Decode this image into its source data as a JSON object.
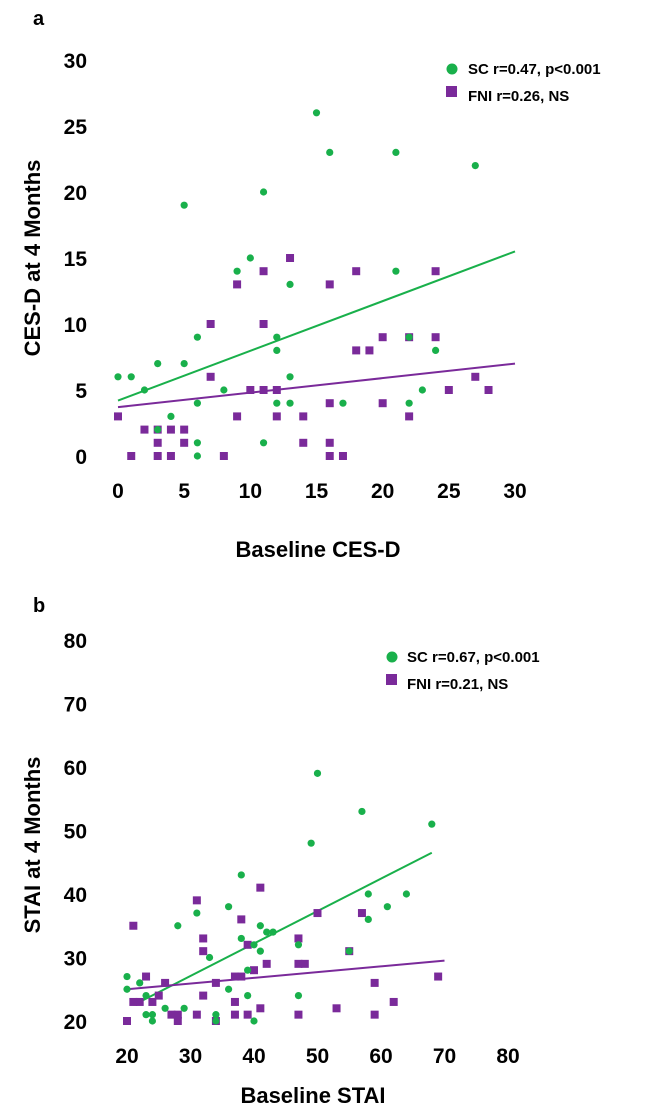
{
  "chart_data": [
    {
      "type": "scatter",
      "panel_label": "a",
      "xlabel": "Baseline  CES-D",
      "ylabel": "CES-D at 4 Months",
      "xlim": [
        0,
        30
      ],
      "ylim": [
        0,
        30
      ],
      "xticks": [
        0,
        5,
        10,
        15,
        20,
        25,
        30
      ],
      "yticks": [
        0,
        5,
        10,
        15,
        20,
        25,
        30
      ],
      "legend_position": "top-right",
      "series": [
        {
          "name": "SC r=0.47, p<0.001",
          "marker": "circle",
          "color": "#19b04b",
          "trend": [
            [
              0,
              4.2
            ],
            [
              30,
              15.5
            ]
          ],
          "points": [
            [
              0,
              6
            ],
            [
              1,
              6
            ],
            [
              2,
              5
            ],
            [
              3,
              7
            ],
            [
              3,
              2
            ],
            [
              4,
              3
            ],
            [
              5,
              7
            ],
            [
              5,
              19
            ],
            [
              6,
              9
            ],
            [
              6,
              4
            ],
            [
              6,
              1
            ],
            [
              6,
              0
            ],
            [
              8,
              5
            ],
            [
              9,
              14
            ],
            [
              10,
              15
            ],
            [
              11,
              20
            ],
            [
              11,
              1
            ],
            [
              12,
              9
            ],
            [
              12,
              8
            ],
            [
              12,
              4
            ],
            [
              13,
              13
            ],
            [
              13,
              6
            ],
            [
              13,
              4
            ],
            [
              15,
              26
            ],
            [
              16,
              23
            ],
            [
              17,
              4
            ],
            [
              21,
              23
            ],
            [
              21,
              14
            ],
            [
              22,
              9
            ],
            [
              22,
              4
            ],
            [
              23,
              5
            ],
            [
              24,
              8
            ],
            [
              27,
              22
            ]
          ]
        },
        {
          "name": "FNI r=0.26, NS",
          "marker": "square",
          "color": "#7a2a9a",
          "trend": [
            [
              0,
              3.7
            ],
            [
              30,
              7.0
            ]
          ],
          "points": [
            [
              0,
              3
            ],
            [
              1,
              0
            ],
            [
              2,
              2
            ],
            [
              3,
              2
            ],
            [
              3,
              1
            ],
            [
              3,
              0
            ],
            [
              4,
              2
            ],
            [
              4,
              0
            ],
            [
              5,
              2
            ],
            [
              5,
              1
            ],
            [
              7,
              10
            ],
            [
              7,
              6
            ],
            [
              8,
              0
            ],
            [
              9,
              13
            ],
            [
              9,
              3
            ],
            [
              10,
              5
            ],
            [
              11,
              14
            ],
            [
              11,
              10
            ],
            [
              11,
              5
            ],
            [
              12,
              5
            ],
            [
              12,
              3
            ],
            [
              13,
              15
            ],
            [
              14,
              3
            ],
            [
              14,
              1
            ],
            [
              16,
              13
            ],
            [
              16,
              4
            ],
            [
              16,
              1
            ],
            [
              16,
              0
            ],
            [
              17,
              0
            ],
            [
              18,
              14
            ],
            [
              18,
              8
            ],
            [
              19,
              8
            ],
            [
              20,
              9
            ],
            [
              20,
              4
            ],
            [
              22,
              9
            ],
            [
              22,
              3
            ],
            [
              24,
              14
            ],
            [
              24,
              9
            ],
            [
              25,
              5
            ],
            [
              27,
              6
            ],
            [
              28,
              5
            ]
          ]
        }
      ]
    },
    {
      "type": "scatter",
      "panel_label": "b",
      "xlabel": "Baseline STAI",
      "ylabel": "STAI at 4 Months",
      "xlim": [
        20,
        80
      ],
      "ylim": [
        20,
        80
      ],
      "xticks": [
        20,
        30,
        40,
        50,
        60,
        70,
        80
      ],
      "yticks": [
        20,
        30,
        40,
        50,
        60,
        70,
        80
      ],
      "legend_position": "top-right",
      "series": [
        {
          "name": "SC r=0.67, p<0.001",
          "marker": "circle",
          "color": "#19b04b",
          "trend": [
            [
              21,
              22.5
            ],
            [
              68,
              46.5
            ]
          ],
          "points": [
            [
              20,
              27
            ],
            [
              20,
              25
            ],
            [
              22,
              26
            ],
            [
              23,
              24
            ],
            [
              23,
              21
            ],
            [
              24,
              21
            ],
            [
              24,
              20
            ],
            [
              26,
              22
            ],
            [
              28,
              35
            ],
            [
              29,
              22
            ],
            [
              31,
              37
            ],
            [
              33,
              30
            ],
            [
              34,
              21
            ],
            [
              34,
              20
            ],
            [
              36,
              38
            ],
            [
              36,
              25
            ],
            [
              38,
              43
            ],
            [
              38,
              33
            ],
            [
              39,
              28
            ],
            [
              39,
              24
            ],
            [
              40,
              32
            ],
            [
              40,
              20
            ],
            [
              41,
              35
            ],
            [
              41,
              31
            ],
            [
              42,
              34
            ],
            [
              43,
              34
            ],
            [
              47,
              32
            ],
            [
              47,
              24
            ],
            [
              49,
              48
            ],
            [
              50,
              59
            ],
            [
              55,
              31
            ],
            [
              57,
              53
            ],
            [
              58,
              36
            ],
            [
              58,
              40
            ],
            [
              61,
              38
            ],
            [
              64,
              40
            ],
            [
              68,
              51
            ]
          ]
        },
        {
          "name": "FNI r=0.21, NS",
          "marker": "square",
          "color": "#7a2a9a",
          "trend": [
            [
              20,
              25
            ],
            [
              70,
              29.5
            ]
          ],
          "points": [
            [
              20,
              20
            ],
            [
              21,
              35
            ],
            [
              21,
              23
            ],
            [
              22,
              23
            ],
            [
              23,
              27
            ],
            [
              24,
              23
            ],
            [
              25,
              24
            ],
            [
              26,
              26
            ],
            [
              27,
              21
            ],
            [
              28,
              21
            ],
            [
              28,
              20
            ],
            [
              31,
              39
            ],
            [
              31,
              21
            ],
            [
              32,
              33
            ],
            [
              32,
              31
            ],
            [
              32,
              24
            ],
            [
              34,
              26
            ],
            [
              34,
              20
            ],
            [
              37,
              27
            ],
            [
              37,
              23
            ],
            [
              37,
              21
            ],
            [
              38,
              36
            ],
            [
              38,
              27
            ],
            [
              39,
              32
            ],
            [
              39,
              21
            ],
            [
              40,
              28
            ],
            [
              41,
              41
            ],
            [
              41,
              22
            ],
            [
              42,
              29
            ],
            [
              47,
              33
            ],
            [
              47,
              29
            ],
            [
              47,
              21
            ],
            [
              48,
              29
            ],
            [
              50,
              37
            ],
            [
              53,
              22
            ],
            [
              55,
              31
            ],
            [
              57,
              37
            ],
            [
              59,
              26
            ],
            [
              59,
              21
            ],
            [
              62,
              23
            ],
            [
              69,
              27
            ]
          ]
        }
      ]
    }
  ]
}
